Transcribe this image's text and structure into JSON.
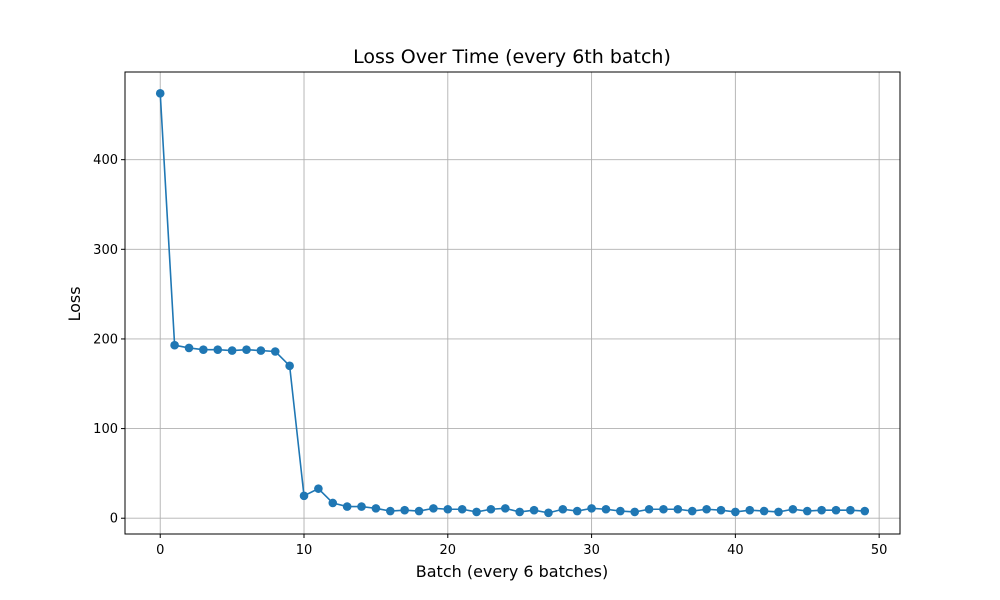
{
  "chart_data": {
    "type": "line",
    "title": "Loss Over Time (every 6th batch)",
    "xlabel": "Batch (every 6 batches)",
    "ylabel": "Loss",
    "xlim": [
      -2.45,
      51.45
    ],
    "ylim": [
      -17.6,
      497.8
    ],
    "xticks": [
      0,
      10,
      20,
      30,
      40,
      50
    ],
    "yticks": [
      0,
      100,
      200,
      300,
      400
    ],
    "grid": true,
    "marker": "circle",
    "color": "#1f77b4",
    "series": [
      {
        "x": [
          0,
          1,
          2,
          3,
          4,
          5,
          6,
          7,
          8,
          9,
          10,
          11,
          12,
          13,
          14,
          15,
          16,
          17,
          18,
          19,
          20,
          21,
          22,
          23,
          24,
          25,
          26,
          27,
          28,
          29,
          30,
          31,
          32,
          33,
          34,
          35,
          36,
          37,
          38,
          39,
          40,
          41,
          42,
          43,
          44,
          45,
          46,
          47,
          48,
          49
        ],
        "values": [
          474,
          193,
          190,
          188,
          188,
          187,
          188,
          187,
          186,
          170,
          25,
          33,
          17,
          13,
          13,
          11,
          8,
          9,
          8,
          11,
          10,
          10,
          7,
          10,
          11,
          7,
          9,
          6,
          10,
          8,
          11,
          10,
          8,
          7,
          10,
          10,
          10,
          8,
          10,
          9,
          7,
          9,
          8,
          7,
          10,
          8,
          9,
          9,
          9,
          8
        ]
      }
    ]
  }
}
